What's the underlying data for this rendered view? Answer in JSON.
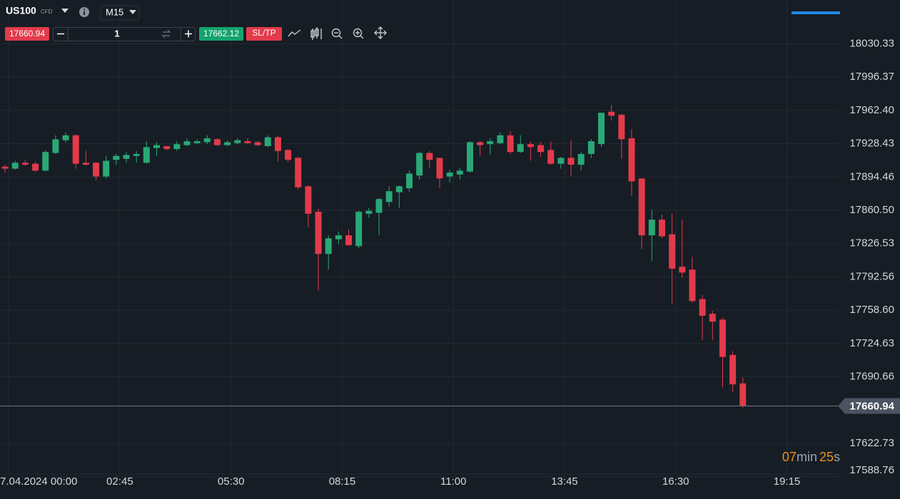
{
  "toolbar": {
    "symbol": "US100",
    "symbol_type": "CFD",
    "timeframe": "M15",
    "sell_price": "17660.94",
    "quantity": "1",
    "buy_price": "17662.12",
    "sltp": "SL/TP"
  },
  "timer": {
    "minutes": "07",
    "minutes_unit": "min",
    "seconds": "25",
    "seconds_unit": "s"
  },
  "chart_data": {
    "type": "candlestick",
    "up_color": "#2aa876",
    "down_color": "#e23b4b",
    "open": [
      17905,
      17903,
      17909,
      17908,
      17901,
      17919,
      17932,
      17937,
      17909,
      17909,
      17895,
      17912,
      17913,
      17916,
      17909,
      17924,
      17926,
      17923,
      17927,
      17929,
      17930,
      17933,
      17927,
      17929,
      17931,
      17930,
      17926,
      17935,
      17922,
      17914,
      17885,
      17859,
      17816,
      17831,
      17835,
      17824,
      17857,
      17858,
      17869,
      17879,
      17883,
      17896,
      17919,
      17914,
      17895,
      17897,
      17900,
      17930,
      17928,
      17929,
      17937,
      17920,
      17928,
      17927,
      17922,
      17908,
      17914,
      17907,
      17918,
      17928,
      17961,
      17958,
      17934,
      17893,
      17835,
      17851,
      17836,
      17803,
      17800,
      17770,
      17755,
      17749,
      17713,
      17684
    ],
    "high": [
      17907,
      17911,
      17912,
      17910,
      17922,
      17937,
      17940,
      17938,
      17921,
      17910,
      17916,
      17918,
      17920,
      17921,
      17931,
      17930,
      17926,
      17931,
      17934,
      17933,
      17937,
      17934,
      17932,
      17934,
      17934,
      17931,
      17937,
      17937,
      17923,
      17915,
      17886,
      17862,
      17835,
      17839,
      17841,
      17860,
      17863,
      17873,
      17885,
      17886,
      17901,
      17920,
      17921,
      17914,
      17902,
      17904,
      17931,
      17931,
      17934,
      17940,
      17941,
      17937,
      17931,
      17930,
      17931,
      17915,
      17932,
      17920,
      17933,
      17960,
      17968,
      17959,
      17943,
      17893,
      17861,
      17856,
      17857,
      17851,
      17813,
      17774,
      17758,
      17751,
      17717,
      17690
    ],
    "low": [
      17899,
      17902,
      17906,
      17900,
      17900,
      17918,
      17930,
      17903,
      17906,
      17891,
      17893,
      17907,
      17909,
      17909,
      17908,
      17916,
      17922,
      17921,
      17926,
      17928,
      17928,
      17926,
      17926,
      17928,
      17928,
      17926,
      17925,
      17910,
      17910,
      17882,
      17843,
      17779,
      17800,
      17826,
      17824,
      17822,
      17853,
      17835,
      17864,
      17863,
      17879,
      17892,
      17904,
      17883,
      17889,
      17892,
      17899,
      17916,
      17917,
      17928,
      17918,
      17919,
      17911,
      17915,
      17907,
      17903,
      17895,
      17901,
      17914,
      17925,
      17952,
      17913,
      17875,
      17821,
      17809,
      17832,
      17765,
      17792,
      17766,
      17728,
      17728,
      17680,
      17675,
      17659
    ],
    "close": [
      17903,
      17909,
      17907,
      17901,
      17920,
      17933,
      17937,
      17908,
      17907,
      17895,
      17911,
      17916,
      17917,
      17918,
      17925,
      17927,
      17923,
      17928,
      17931,
      17931,
      17934,
      17927,
      17930,
      17932,
      17929,
      17927,
      17935,
      17921,
      17912,
      17884,
      17857,
      17816,
      17832,
      17835,
      17825,
      17859,
      17860,
      17872,
      17880,
      17885,
      17898,
      17919,
      17912,
      17893,
      17899,
      17901,
      17930,
      17927,
      17931,
      17937,
      17920,
      17928,
      17925,
      17920,
      17908,
      17914,
      17907,
      17918,
      17931,
      17960,
      17957,
      17933,
      17890,
      17835,
      17851,
      17834,
      17801,
      17797,
      17768,
      17753,
      17747,
      17711,
      17683,
      17660.94
    ],
    "current_price": 17660.94,
    "ylim": [
      17585,
      18075
    ],
    "yticks": [
      18030.33,
      17996.37,
      {
        "value": 17962.4,
        "label": "17962.40"
      },
      17928.43,
      17894.46,
      {
        "value": 17860.5,
        "label": "17860.50"
      },
      17826.53,
      17792.56,
      {
        "value": 17758.6,
        "label": "17758.60"
      },
      17724.63,
      17690.66,
      17622.73,
      17588.76
    ],
    "xlim": [
      -0.5,
      82.55
    ],
    "xticks": [
      {
        "value": 0.36,
        "label": "7.04.2024 00:00"
      },
      {
        "value": 11.36,
        "label": "02:45"
      },
      {
        "value": 22.36,
        "label": "05:30"
      },
      {
        "value": 33.36,
        "label": "08:15"
      },
      {
        "value": 44.36,
        "label": "11:00"
      },
      {
        "value": 55.36,
        "label": "13:45"
      },
      {
        "value": 66.36,
        "label": "16:30"
      },
      {
        "value": 77.36,
        "label": "19:15"
      }
    ],
    "grid": true
  }
}
